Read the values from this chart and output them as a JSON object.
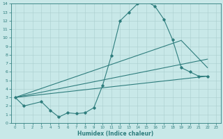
{
  "xlabel": "Humidex (Indice chaleur)",
  "bg_color": "#c8e8e8",
  "grid_color": "#aacece",
  "line_color": "#2e7d7d",
  "spine_color": "#2e7d7d",
  "xlim": [
    -0.5,
    23.5
  ],
  "ylim": [
    0,
    14
  ],
  "xticks": [
    0,
    1,
    2,
    3,
    4,
    5,
    6,
    7,
    8,
    9,
    10,
    11,
    12,
    13,
    14,
    15,
    16,
    17,
    18,
    19,
    20,
    21,
    22,
    23
  ],
  "yticks": [
    0,
    1,
    2,
    3,
    4,
    5,
    6,
    7,
    8,
    9,
    10,
    11,
    12,
    13,
    14
  ],
  "curve_x": [
    0,
    1,
    3,
    4,
    5,
    6,
    7,
    8,
    9,
    10,
    11,
    12,
    13,
    14,
    15,
    16,
    17,
    18,
    19,
    20,
    21,
    22
  ],
  "curve_y": [
    3.0,
    2.0,
    2.5,
    1.5,
    0.7,
    1.2,
    1.1,
    1.2,
    1.8,
    4.4,
    7.9,
    12.0,
    13.0,
    14.0,
    14.3,
    13.7,
    12.2,
    9.8,
    6.5,
    6.0,
    5.5,
    5.5
  ],
  "line2_x": [
    0,
    19,
    22
  ],
  "line2_y": [
    3.0,
    9.7,
    6.5
  ],
  "line3_x": [
    0,
    22
  ],
  "line3_y": [
    3.0,
    7.5
  ],
  "line4_x": [
    0,
    22
  ],
  "line4_y": [
    3.0,
    5.5
  ]
}
